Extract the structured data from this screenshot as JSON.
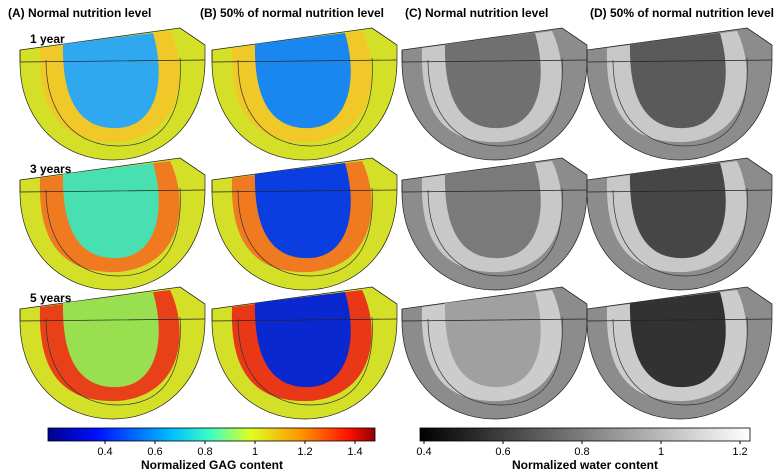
{
  "panels": {
    "columns": [
      "(A) Normal nutrition level",
      "(B) 50% of normal  nutrition level",
      "(C) Normal nutrition level",
      "(D) 50% of normal nutrition level"
    ],
    "rows": [
      "1 year",
      "3 years",
      "5 years"
    ]
  },
  "colorbars": [
    {
      "label": "Normalized GAG content",
      "ticks": [
        0.4,
        0.6,
        0.8,
        1,
        1.2,
        1.4
      ]
    },
    {
      "label": "Normalized water content",
      "ticks": [
        0.4,
        0.6,
        0.8,
        1,
        1.2
      ]
    }
  ]
}
